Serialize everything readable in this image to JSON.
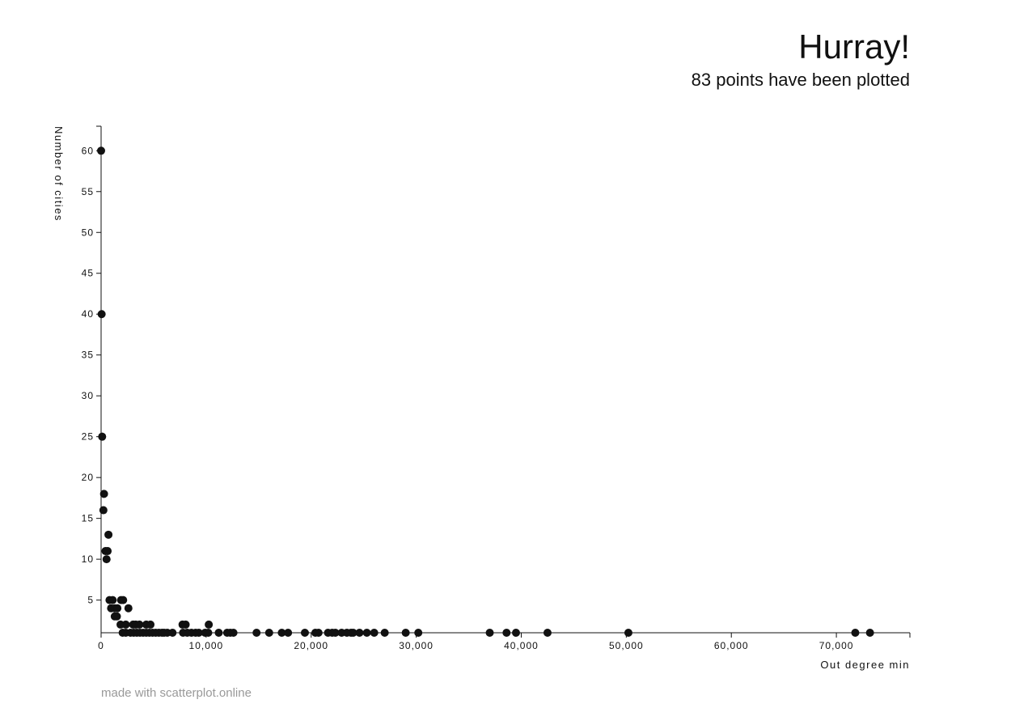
{
  "header": {
    "title": "Hurray!",
    "subtitle": "83 points have been plotted"
  },
  "footer": {
    "credit": "made with scatterplot.online"
  },
  "colors": {
    "point": "#111111",
    "axis": "#111111",
    "footer": "#999999"
  },
  "chart_data": {
    "type": "scatter",
    "title": "Hurray!",
    "subtitle": "83 points have been plotted",
    "xlabel": "Out degree min",
    "ylabel": "Number of cities",
    "xlim": [
      0,
      77000
    ],
    "ylim": [
      1,
      63
    ],
    "x_ticks": [
      0,
      10000,
      20000,
      30000,
      40000,
      50000,
      60000,
      70000
    ],
    "x_tick_labels": [
      "0",
      "10,000",
      "20,000",
      "30,000",
      "40,000",
      "50,000",
      "60,000",
      "70,000"
    ],
    "y_ticks": [
      5,
      10,
      15,
      20,
      25,
      30,
      35,
      40,
      45,
      50,
      55,
      60
    ],
    "y_tick_labels": [
      "5",
      "10",
      "15",
      "20",
      "25",
      "30",
      "35",
      "40",
      "45",
      "50",
      "55",
      "60"
    ],
    "points": [
      [
        0,
        60
      ],
      [
        50,
        40
      ],
      [
        100,
        25
      ],
      [
        280,
        18
      ],
      [
        220,
        16
      ],
      [
        700,
        13
      ],
      [
        420,
        11
      ],
      [
        620,
        11
      ],
      [
        520,
        10
      ],
      [
        800,
        5
      ],
      [
        1100,
        5
      ],
      [
        1900,
        5
      ],
      [
        2100,
        5
      ],
      [
        950,
        4
      ],
      [
        1300,
        4
      ],
      [
        1550,
        4
      ],
      [
        2600,
        4
      ],
      [
        1300,
        3
      ],
      [
        1500,
        3
      ],
      [
        1850,
        2
      ],
      [
        2350,
        2
      ],
      [
        3050,
        2
      ],
      [
        3300,
        2
      ],
      [
        3650,
        2
      ],
      [
        4300,
        2
      ],
      [
        4700,
        2
      ],
      [
        7750,
        2
      ],
      [
        8050,
        2
      ],
      [
        10250,
        2
      ],
      [
        2050,
        1
      ],
      [
        2350,
        1
      ],
      [
        2800,
        1
      ],
      [
        3100,
        1
      ],
      [
        3400,
        1
      ],
      [
        3700,
        1
      ],
      [
        4000,
        1
      ],
      [
        4300,
        1
      ],
      [
        4600,
        1
      ],
      [
        4900,
        1
      ],
      [
        5200,
        1
      ],
      [
        5500,
        1
      ],
      [
        5800,
        1
      ],
      [
        6300,
        1
      ],
      [
        6800,
        1
      ],
      [
        7800,
        1
      ],
      [
        8200,
        1
      ],
      [
        8600,
        1
      ],
      [
        9000,
        1
      ],
      [
        9300,
        1
      ],
      [
        9900,
        1
      ],
      [
        10200,
        1
      ],
      [
        11200,
        1
      ],
      [
        12000,
        1
      ],
      [
        12300,
        1
      ],
      [
        12600,
        1
      ],
      [
        14800,
        1
      ],
      [
        17200,
        1
      ],
      [
        17800,
        1
      ],
      [
        19400,
        1
      ],
      [
        20400,
        1
      ],
      [
        20700,
        1
      ],
      [
        21600,
        1
      ],
      [
        22000,
        1
      ],
      [
        22300,
        1
      ],
      [
        22900,
        1
      ],
      [
        23400,
        1
      ],
      [
        23800,
        1
      ],
      [
        24000,
        1
      ],
      [
        24600,
        1
      ],
      [
        26000,
        1
      ],
      [
        27000,
        1
      ],
      [
        29000,
        1
      ],
      [
        30200,
        1
      ],
      [
        37000,
        1
      ],
      [
        38600,
        1
      ],
      [
        39500,
        1
      ],
      [
        42500,
        1
      ],
      [
        50200,
        1
      ],
      [
        71800,
        1
      ],
      [
        73200,
        1
      ],
      [
        16000,
        1
      ],
      [
        25300,
        1
      ],
      [
        6000,
        1
      ]
    ]
  }
}
